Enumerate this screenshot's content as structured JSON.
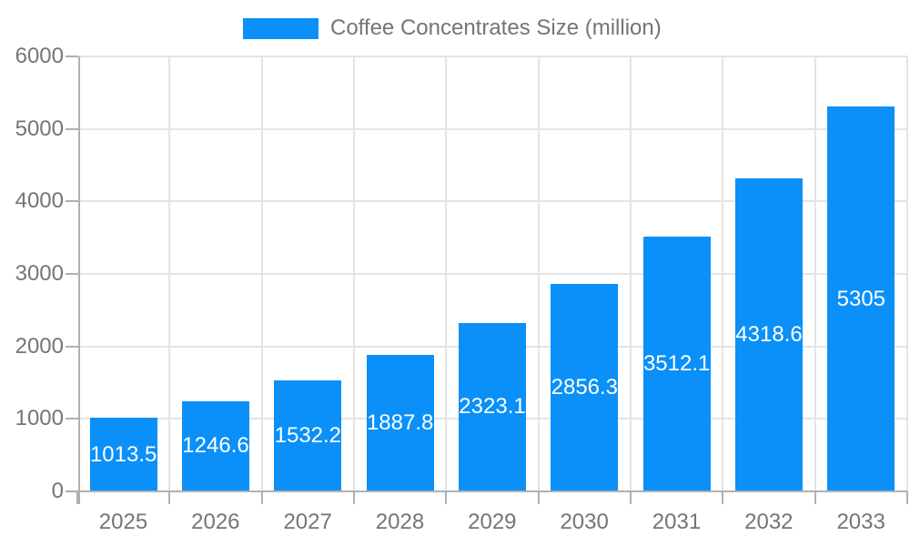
{
  "legend": {
    "label": "Coffee Concentrates Size (million)"
  },
  "colors": {
    "bar": "#0a90f8",
    "grid": "#e4e4e4",
    "axis": "#b0b0b0",
    "text": "#757575",
    "bar_label": "#ffffff",
    "background": "#ffffff"
  },
  "chart_data": {
    "type": "bar",
    "title": "Coffee Concentrates Size (million)",
    "categories": [
      "2025",
      "2026",
      "2027",
      "2028",
      "2029",
      "2030",
      "2031",
      "2032",
      "2033"
    ],
    "values": [
      1013.5,
      1246.6,
      1532.2,
      1887.8,
      2323.1,
      2856.3,
      3512.1,
      4318.6,
      5305
    ],
    "value_labels": [
      "1013.5",
      "1246.6",
      "1532.2",
      "1887.8",
      "2323.1",
      "2856.3",
      "3512.1",
      "4318.6",
      "5305"
    ],
    "xlabel": "",
    "ylabel": "",
    "ylim": [
      0,
      6000
    ],
    "yticks": [
      0,
      1000,
      2000,
      3000,
      4000,
      5000,
      6000
    ],
    "grid": true,
    "legend_position": "top",
    "value_label_position": "center-of-bar"
  }
}
